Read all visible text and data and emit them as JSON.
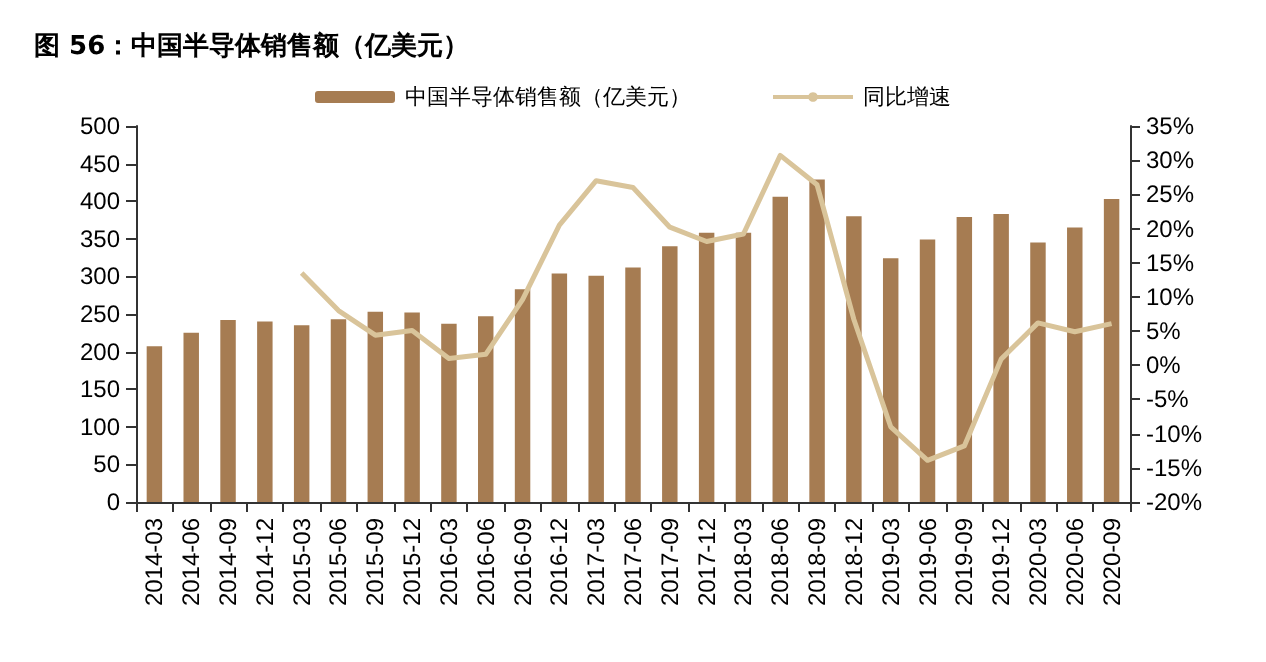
{
  "chart_data": {
    "type": "bar",
    "title": "图 56：中国半导体销售额（亿美元）",
    "categories": [
      "2014-03",
      "2014-06",
      "2014-09",
      "2014-12",
      "2015-03",
      "2015-06",
      "2015-09",
      "2015-12",
      "2016-03",
      "2016-06",
      "2016-09",
      "2016-12",
      "2017-03",
      "2017-06",
      "2017-09",
      "2017-12",
      "2018-03",
      "2018-06",
      "2018-09",
      "2018-12",
      "2019-03",
      "2019-06",
      "2019-09",
      "2019-12",
      "2020-03",
      "2020-06",
      "2020-09"
    ],
    "series": [
      {
        "name": "中国半导体销售额（亿美元）",
        "color": "#a67c52",
        "values": [
          207,
          225,
          242,
          240,
          235,
          243,
          253,
          252,
          237,
          247,
          283,
          304,
          301,
          312,
          340,
          358,
          358,
          406,
          429,
          380,
          324,
          349,
          379,
          383,
          345,
          365,
          403
        ]
      },
      {
        "name": "同比增速",
        "type": "line",
        "axis": "y2",
        "color": "#d9c49a",
        "values": [
          null,
          null,
          null,
          null,
          13.5,
          8,
          4.4,
          5.1,
          1,
          1.6,
          9.6,
          20.5,
          27,
          26,
          20.2,
          18.1,
          19.2,
          30.7,
          26.4,
          6.7,
          -9,
          -13.9,
          -11.8,
          0.9,
          6.2,
          4.9,
          6.1
        ]
      }
    ],
    "ylim": [
      0,
      500
    ],
    "yticks": [
      0,
      50,
      100,
      150,
      200,
      250,
      300,
      350,
      400,
      450,
      500
    ],
    "y2lim": [
      -20,
      35
    ],
    "y2ticks": [
      {
        "value": -20,
        "label": "-20%"
      },
      {
        "value": -15,
        "label": "-15%"
      },
      {
        "value": -10,
        "label": "-10%"
      },
      {
        "value": -5,
        "label": "-5%"
      },
      {
        "value": 0,
        "label": "0%"
      },
      {
        "value": 5,
        "label": "5%"
      },
      {
        "value": 10,
        "label": "10%"
      },
      {
        "value": 15,
        "label": "15%"
      },
      {
        "value": 20,
        "label": "20%"
      },
      {
        "value": 25,
        "label": "25%"
      },
      {
        "value": 30,
        "label": "30%"
      },
      {
        "value": 35,
        "label": "35%"
      }
    ],
    "legend": "top",
    "grid": false,
    "marker": "none"
  }
}
